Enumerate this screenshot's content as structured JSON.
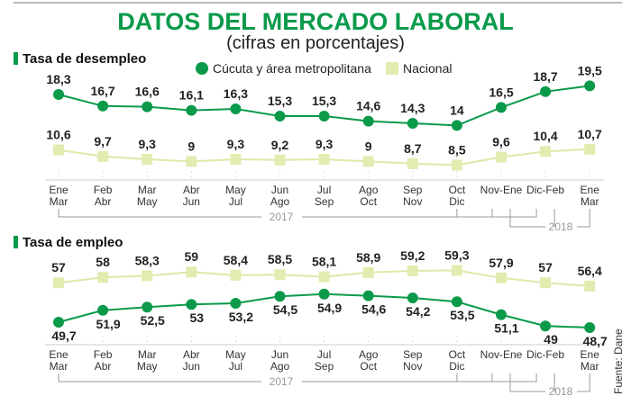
{
  "header": {
    "title": "DATOS DEL MERCADO LABORAL",
    "subtitle": "(cifras en porcentajes)"
  },
  "legend": {
    "series1": "Cúcuta y área metropolitana",
    "series2": "Nacional"
  },
  "source": "Fuente: Dane",
  "colors": {
    "series1": "#0a9a4a",
    "series2": "#e3ebb0",
    "line2": "#dfe8a8"
  },
  "years": {
    "y2017": "2017",
    "y2018": "2018"
  },
  "chart_data": [
    {
      "type": "line",
      "title": "Tasa de desempleo",
      "categories": [
        [
          "Ene",
          "Mar"
        ],
        [
          "Feb",
          "Abr"
        ],
        [
          "Mar",
          "May"
        ],
        [
          "Abr",
          "Jun"
        ],
        [
          "May",
          "Jul"
        ],
        [
          "Jun",
          "Ago"
        ],
        [
          "Jul",
          "Sep"
        ],
        [
          "Ago",
          "Oct"
        ],
        [
          "Sep",
          "Nov"
        ],
        [
          "Oct",
          "Dic"
        ],
        [
          "Nov-Ene",
          ""
        ],
        [
          "Dic-Feb",
          ""
        ],
        [
          "Ene",
          "Mar"
        ]
      ],
      "series": [
        {
          "name": "Cúcuta y área metropolitana",
          "values": [
            18.3,
            16.7,
            16.6,
            16.1,
            16.3,
            15.3,
            15.3,
            14.6,
            14.3,
            14,
            16.5,
            18.7,
            19.5
          ],
          "labels": [
            "18,3",
            "16,7",
            "16,6",
            "16,1",
            "16,3",
            "15,3",
            "15,3",
            "14,6",
            "14,3",
            "14",
            "16,5",
            "18,7",
            "19,5"
          ]
        },
        {
          "name": "Nacional",
          "values": [
            10.6,
            9.7,
            9.3,
            9,
            9.3,
            9.2,
            9.3,
            9,
            8.7,
            8.5,
            9.6,
            10.4,
            10.7
          ],
          "labels": [
            "10,6",
            "9,7",
            "9,3",
            "9",
            "9,3",
            "9,2",
            "9,3",
            "9",
            "8,7",
            "8,5",
            "9,6",
            "10,4",
            "10,7"
          ]
        }
      ]
    },
    {
      "type": "line",
      "title": "Tasa de empleo",
      "categories": [
        [
          "Ene",
          "Mar"
        ],
        [
          "Feb",
          "Abr"
        ],
        [
          "Mar",
          "May"
        ],
        [
          "Abr",
          "Jun"
        ],
        [
          "May",
          "Jul"
        ],
        [
          "Jun",
          "Ago"
        ],
        [
          "Jul",
          "Sep"
        ],
        [
          "Ago",
          "Oct"
        ],
        [
          "Sep",
          "Nov"
        ],
        [
          "Oct",
          "Dic"
        ],
        [
          "Nov-Ene",
          ""
        ],
        [
          "Dic-Feb",
          ""
        ],
        [
          "Ene",
          "Mar"
        ]
      ],
      "series": [
        {
          "name": "Cúcuta y área metropolitana",
          "values": [
            49.7,
            51.9,
            52.5,
            53,
            53.2,
            54.5,
            54.9,
            54.6,
            54.2,
            53.5,
            51.1,
            49,
            48.7
          ],
          "labels": [
            "49,7",
            "51,9",
            "52,5",
            "53",
            "53,2",
            "54,5",
            "54,9",
            "54,6",
            "54,2",
            "53,5",
            "51,1",
            "49",
            "48,7"
          ]
        },
        {
          "name": "Nacional",
          "values": [
            57,
            58,
            58.3,
            59,
            58.4,
            58.5,
            58.1,
            58.9,
            59.2,
            59.3,
            57.9,
            57,
            56.4
          ],
          "labels": [
            "57",
            "58",
            "58,3",
            "59",
            "58,4",
            "58,5",
            "58,1",
            "58,9",
            "59,2",
            "59,3",
            "57,9",
            "57",
            "56,4"
          ]
        }
      ]
    }
  ]
}
